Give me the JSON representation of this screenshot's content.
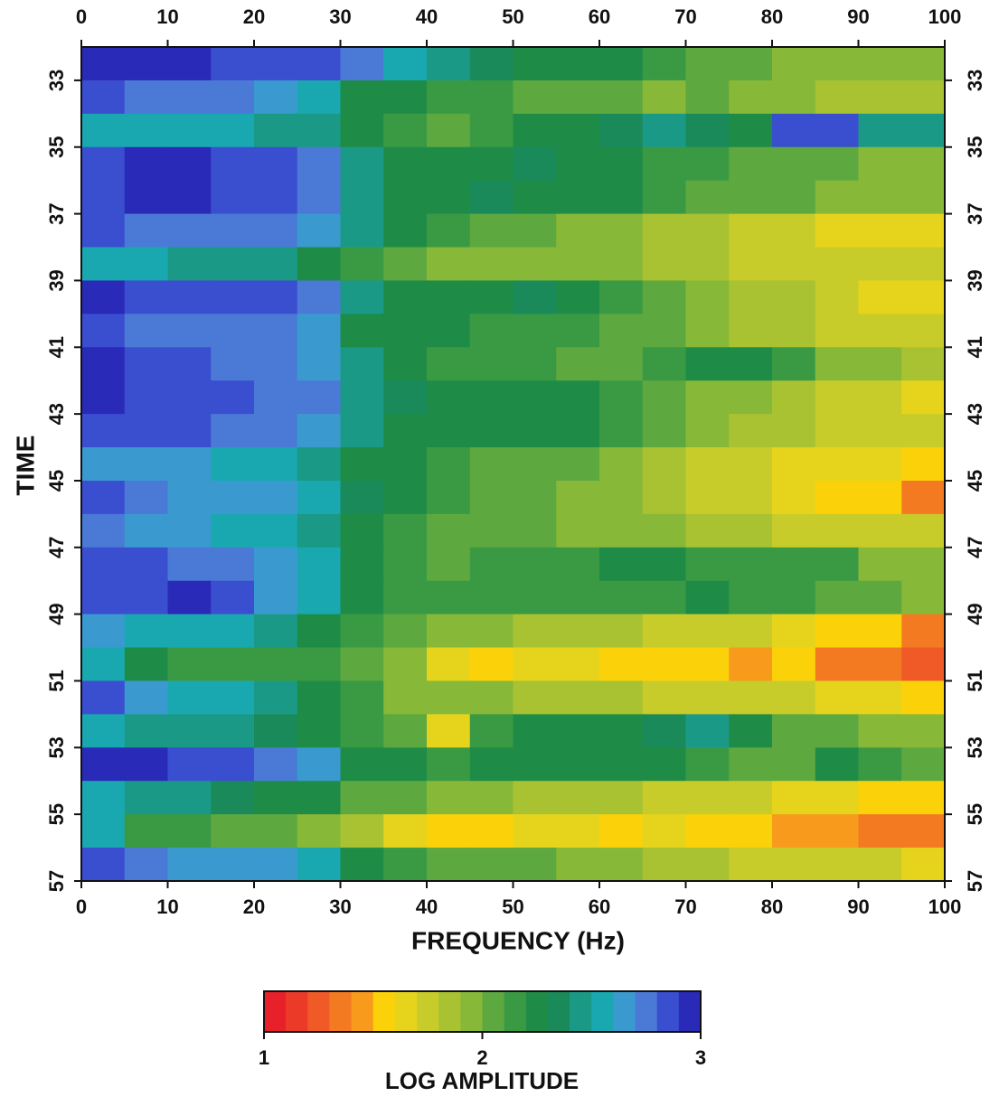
{
  "chart_data": {
    "type": "heatmap",
    "xlabel": "FREQUENCY (Hz)",
    "ylabel": "TIME",
    "x_edges": [
      0,
      5,
      10,
      15,
      20,
      25,
      30,
      35,
      40,
      45,
      50,
      55,
      60,
      65,
      70,
      75,
      80,
      85,
      90,
      95,
      100
    ],
    "y_edges": [
      32,
      33,
      34,
      35,
      36,
      37,
      38,
      39,
      40,
      41,
      42,
      43,
      44,
      45,
      46,
      47,
      48,
      49,
      50,
      51,
      52,
      53,
      54,
      55,
      56,
      57
    ],
    "xlim": [
      0,
      100
    ],
    "xticks": [
      0,
      10,
      20,
      30,
      40,
      50,
      60,
      70,
      80,
      90,
      100
    ],
    "ylim": [
      32,
      57
    ],
    "yticks": [
      33,
      35,
      37,
      39,
      41,
      43,
      45,
      47,
      49,
      51,
      53,
      55,
      57
    ],
    "y_reversed": true,
    "values": [
      [
        2.9,
        2.9,
        2.9,
        2.85,
        2.85,
        2.85,
        2.7,
        2.5,
        2.4,
        2.35,
        2.3,
        2.3,
        2.2,
        2.1,
        2.0,
        2.0,
        1.95,
        1.9,
        1.9,
        1.9
      ],
      [
        2.8,
        2.7,
        2.7,
        2.7,
        2.6,
        2.5,
        2.3,
        2.2,
        2.1,
        2.1,
        2.05,
        2.05,
        2.0,
        1.95,
        2.0,
        1.95,
        1.9,
        1.85,
        1.85,
        1.8
      ],
      [
        2.5,
        2.5,
        2.5,
        2.5,
        2.45,
        2.4,
        2.2,
        2.1,
        2.0,
        2.1,
        2.2,
        2.3,
        2.35,
        2.4,
        2.35,
        2.3,
        2.85,
        2.85,
        2.4,
        2.4
      ],
      [
        2.8,
        2.9,
        2.9,
        2.85,
        2.85,
        2.7,
        2.4,
        2.3,
        2.3,
        2.3,
        2.35,
        2.3,
        2.2,
        2.15,
        2.1,
        2.05,
        2.0,
        2.0,
        1.95,
        1.9
      ],
      [
        2.8,
        2.9,
        2.9,
        2.85,
        2.8,
        2.7,
        2.4,
        2.3,
        2.3,
        2.35,
        2.3,
        2.3,
        2.2,
        2.1,
        2.05,
        2.0,
        2.0,
        1.9,
        1.95,
        1.9
      ],
      [
        2.8,
        2.75,
        2.7,
        2.7,
        2.7,
        2.6,
        2.4,
        2.2,
        2.1,
        2.05,
        2.0,
        1.95,
        1.9,
        1.85,
        1.8,
        1.7,
        1.7,
        1.6,
        1.6,
        1.6
      ],
      [
        2.5,
        2.5,
        2.45,
        2.45,
        2.4,
        2.3,
        2.1,
        2.0,
        1.9,
        1.9,
        1.95,
        1.9,
        1.9,
        1.85,
        1.8,
        1.75,
        1.7,
        1.7,
        1.7,
        1.7
      ],
      [
        2.9,
        2.85,
        2.85,
        2.85,
        2.8,
        2.75,
        2.4,
        2.3,
        2.2,
        2.2,
        2.35,
        2.2,
        2.1,
        2.0,
        1.95,
        1.85,
        1.8,
        1.7,
        1.65,
        1.65
      ],
      [
        2.8,
        2.7,
        2.7,
        2.7,
        2.7,
        2.6,
        2.3,
        2.2,
        2.2,
        2.15,
        2.1,
        2.1,
        2.05,
        2.0,
        1.9,
        1.85,
        1.8,
        1.7,
        1.7,
        1.7
      ],
      [
        2.9,
        2.85,
        2.8,
        2.75,
        2.7,
        2.6,
        2.4,
        2.2,
        2.1,
        2.1,
        2.1,
        2.05,
        2.0,
        2.1,
        2.2,
        2.2,
        2.1,
        1.9,
        1.95,
        1.8
      ],
      [
        2.9,
        2.85,
        2.85,
        2.8,
        2.75,
        2.7,
        2.4,
        2.35,
        2.3,
        2.3,
        2.3,
        2.2,
        2.1,
        2.0,
        1.95,
        1.9,
        1.8,
        1.75,
        1.7,
        1.65
      ],
      [
        2.8,
        2.85,
        2.8,
        2.75,
        2.7,
        2.6,
        2.4,
        2.3,
        2.25,
        2.3,
        2.3,
        2.2,
        2.1,
        2.0,
        1.9,
        1.85,
        1.8,
        1.75,
        1.7,
        1.7
      ],
      [
        2.6,
        2.6,
        2.6,
        2.55,
        2.5,
        2.45,
        2.3,
        2.2,
        2.1,
        2.05,
        2.0,
        2.0,
        1.9,
        1.85,
        1.75,
        1.7,
        1.65,
        1.6,
        1.6,
        1.5
      ],
      [
        2.8,
        2.7,
        2.6,
        2.6,
        2.6,
        2.5,
        2.35,
        2.2,
        2.1,
        2.05,
        2.0,
        1.9,
        1.9,
        1.85,
        1.75,
        1.7,
        1.6,
        1.55,
        1.55,
        1.4
      ],
      [
        2.7,
        2.6,
        2.6,
        2.55,
        2.5,
        2.4,
        2.2,
        2.1,
        2.05,
        2.0,
        2.0,
        1.95,
        1.9,
        1.9,
        1.85,
        1.8,
        1.75,
        1.75,
        1.7,
        1.7
      ],
      [
        2.8,
        2.85,
        2.7,
        2.7,
        2.6,
        2.5,
        2.3,
        2.15,
        2.05,
        2.1,
        2.15,
        2.15,
        2.2,
        2.2,
        2.1,
        2.1,
        2.15,
        2.1,
        1.95,
        1.95
      ],
      [
        2.8,
        2.85,
        2.9,
        2.85,
        2.6,
        2.5,
        2.3,
        2.15,
        2.1,
        2.1,
        2.1,
        2.1,
        2.1,
        2.15,
        2.2,
        2.15,
        2.1,
        2.05,
        2.0,
        1.95
      ],
      [
        2.6,
        2.5,
        2.5,
        2.5,
        2.4,
        2.3,
        2.15,
        2.0,
        1.9,
        1.9,
        1.85,
        1.8,
        1.8,
        1.75,
        1.7,
        1.7,
        1.65,
        1.5,
        1.5,
        1.35
      ],
      [
        2.5,
        2.2,
        2.15,
        2.15,
        2.1,
        2.1,
        2.0,
        1.9,
        1.6,
        1.55,
        1.6,
        1.6,
        1.55,
        1.5,
        1.5,
        1.45,
        1.5,
        1.3,
        1.3,
        1.25
      ],
      [
        2.8,
        2.6,
        2.5,
        2.5,
        2.4,
        2.3,
        2.1,
        1.95,
        1.9,
        1.9,
        1.85,
        1.85,
        1.8,
        1.75,
        1.75,
        1.7,
        1.7,
        1.65,
        1.6,
        1.5
      ],
      [
        2.5,
        2.45,
        2.45,
        2.4,
        2.35,
        2.3,
        2.1,
        2.0,
        1.65,
        2.1,
        2.2,
        2.25,
        2.3,
        2.35,
        2.4,
        2.25,
        2.05,
        2.0,
        1.95,
        1.95
      ],
      [
        2.9,
        2.9,
        2.85,
        2.8,
        2.7,
        2.6,
        2.3,
        2.2,
        2.1,
        2.2,
        2.2,
        2.3,
        2.25,
        2.2,
        2.1,
        2.05,
        2.0,
        2.3,
        2.1,
        2.0
      ],
      [
        2.5,
        2.45,
        2.4,
        2.35,
        2.3,
        2.2,
        2.05,
        2.0,
        1.95,
        1.9,
        1.85,
        1.8,
        1.8,
        1.75,
        1.7,
        1.7,
        1.6,
        1.6,
        1.5,
        1.5
      ],
      [
        2.5,
        2.1,
        2.1,
        2.05,
        2.0,
        1.95,
        1.8,
        1.6,
        1.55,
        1.55,
        1.6,
        1.6,
        1.55,
        1.6,
        1.5,
        1.5,
        1.45,
        1.45,
        1.3,
        1.4
      ],
      [
        2.8,
        2.7,
        2.65,
        2.65,
        2.6,
        2.5,
        2.3,
        2.15,
        2.05,
        2.0,
        2.0,
        1.9,
        1.95,
        1.85,
        1.8,
        1.75,
        1.75,
        1.7,
        1.7,
        1.65
      ]
    ],
    "colorscale": [
      "#e8202a",
      "#ec3a28",
      "#f05a26",
      "#f47a22",
      "#f89a1c",
      "#fbd20a",
      "#e6d41c",
      "#c8cc2a",
      "#a8c232",
      "#88b838",
      "#5ea840",
      "#3a9a44",
      "#1e8c46",
      "#1a8a5a",
      "#1a9a86",
      "#1aa8b0",
      "#3a9ad0",
      "#4a7ad6",
      "#3a4ed0",
      "#2a2ab8"
    ],
    "colorbar": {
      "label": "LOG AMPLITUDE",
      "lim": [
        1,
        3
      ],
      "ticks": [
        1,
        2,
        3
      ]
    }
  }
}
